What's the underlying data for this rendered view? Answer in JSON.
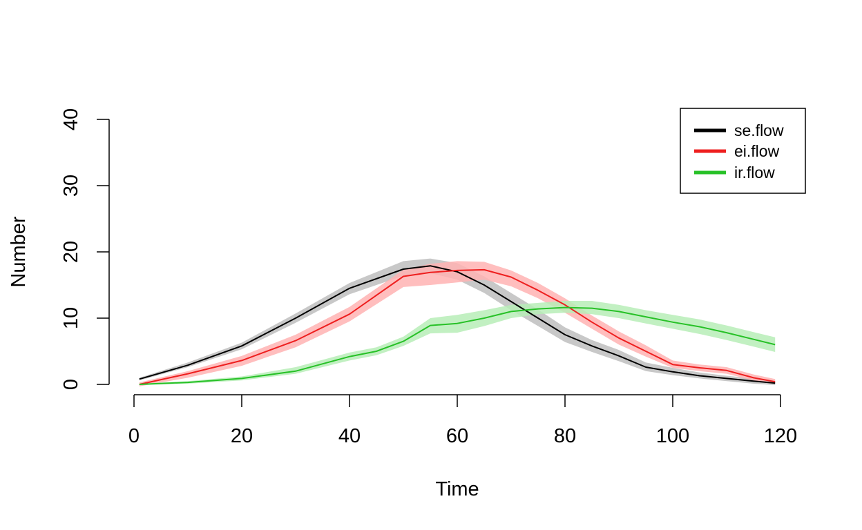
{
  "chart_data": {
    "type": "line",
    "xlabel": "Time",
    "ylabel": "Number",
    "xlim": [
      0,
      120
    ],
    "ylim": [
      0,
      40
    ],
    "x_ticks": [
      0,
      20,
      40,
      60,
      80,
      100,
      120
    ],
    "y_ticks": [
      0,
      10,
      20,
      30,
      40
    ],
    "grid": false,
    "legend_position": "top-right",
    "series": [
      {
        "name": "se.flow",
        "color": "#000000",
        "band_color": "#bebebe",
        "x": [
          1,
          10,
          20,
          30,
          40,
          50,
          55,
          60,
          65,
          70,
          75,
          80,
          85,
          90,
          95,
          100,
          105,
          110,
          115,
          119
        ],
        "mean": [
          0.8,
          2.9,
          5.8,
          10.0,
          14.5,
          17.4,
          17.9,
          17.0,
          15.0,
          12.5,
          10.0,
          7.5,
          5.8,
          4.3,
          2.6,
          1.9,
          1.3,
          0.9,
          0.5,
          0.2
        ],
        "lower": [
          0.6,
          2.6,
          5.3,
          9.3,
          13.6,
          16.4,
          16.8,
          15.8,
          13.8,
          11.2,
          8.8,
          6.4,
          4.9,
          3.5,
          2.0,
          1.4,
          0.9,
          0.5,
          0.1,
          -0.1
        ],
        "upper": [
          1.0,
          3.3,
          6.3,
          10.7,
          15.3,
          18.6,
          19.0,
          18.3,
          16.3,
          13.8,
          11.3,
          8.6,
          6.7,
          5.2,
          3.3,
          2.5,
          1.8,
          1.3,
          0.9,
          0.6
        ]
      },
      {
        "name": "ei.flow",
        "color": "#ee1f1f",
        "band_color": "#ffb3b3",
        "x": [
          1,
          10,
          20,
          30,
          40,
          50,
          55,
          60,
          65,
          70,
          75,
          80,
          85,
          90,
          95,
          100,
          105,
          110,
          115,
          119
        ],
        "mean": [
          0.0,
          1.6,
          3.6,
          6.6,
          10.6,
          16.3,
          16.9,
          17.2,
          17.3,
          16.2,
          14.2,
          12.0,
          9.4,
          7.0,
          5.0,
          3.0,
          2.5,
          2.1,
          1.0,
          0.4
        ],
        "lower": [
          -0.3,
          1.0,
          2.8,
          5.6,
          9.5,
          14.7,
          15.0,
          15.4,
          15.8,
          14.8,
          13.0,
          10.8,
          8.4,
          6.0,
          4.2,
          2.5,
          2.0,
          1.6,
          0.6,
          0.1
        ],
        "upper": [
          0.3,
          2.0,
          4.3,
          7.5,
          11.7,
          17.3,
          18.2,
          18.6,
          18.5,
          17.2,
          15.3,
          13.0,
          10.4,
          8.0,
          5.9,
          3.6,
          3.0,
          2.6,
          1.5,
          0.8
        ]
      },
      {
        "name": "ir.flow",
        "color": "#27c127",
        "band_color": "#b7edb7",
        "x": [
          1,
          10,
          20,
          30,
          40,
          45,
          50,
          55,
          60,
          65,
          70,
          75,
          80,
          85,
          90,
          95,
          100,
          105,
          110,
          115,
          119
        ],
        "mean": [
          0.0,
          0.3,
          0.9,
          2.0,
          4.2,
          5.0,
          6.5,
          8.9,
          9.2,
          10.0,
          11.0,
          11.4,
          11.6,
          11.5,
          11.0,
          10.2,
          9.4,
          8.7,
          7.8,
          6.8,
          6.0
        ],
        "lower": [
          -0.1,
          0.1,
          0.6,
          1.6,
          3.6,
          4.4,
          5.8,
          7.7,
          7.8,
          8.8,
          10.0,
          10.6,
          10.8,
          10.6,
          10.0,
          9.2,
          8.4,
          7.6,
          6.7,
          5.7,
          4.9
        ],
        "upper": [
          0.1,
          0.5,
          1.2,
          2.6,
          4.8,
          5.6,
          7.2,
          10.0,
          10.5,
          11.2,
          12.0,
          12.3,
          12.6,
          12.6,
          12.0,
          11.2,
          10.5,
          9.8,
          8.9,
          7.9,
          7.1
        ]
      }
    ]
  }
}
